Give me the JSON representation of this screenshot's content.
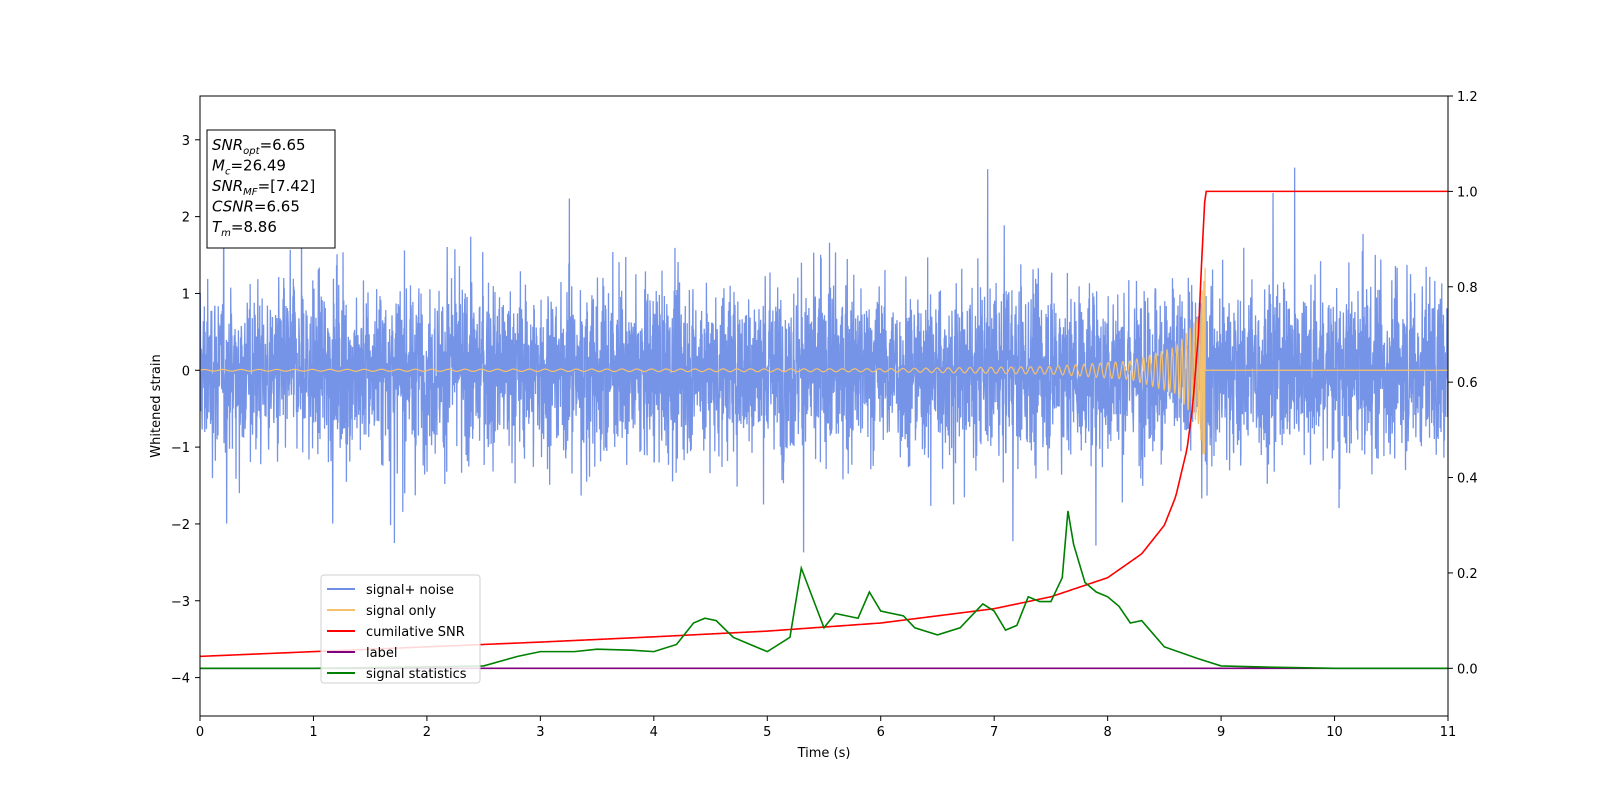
{
  "chart_data": {
    "type": "line",
    "xlabel": "Time (s)",
    "ylabel": "Whitened strain",
    "xlim": [
      0,
      11
    ],
    "ylim": [
      -4.5,
      3.57
    ],
    "y2lim": [
      -0.1,
      1.2
    ],
    "xticks": [
      "0",
      "1",
      "2",
      "3",
      "4",
      "5",
      "6",
      "7",
      "8",
      "9",
      "10",
      "11"
    ],
    "yticks": [
      "−4",
      "−3",
      "−2",
      "−1",
      "0",
      "1",
      "2",
      "3"
    ],
    "y2ticks": [
      "0.0",
      "0.2",
      "0.4",
      "0.6",
      "0.8",
      "1.0",
      "1.2"
    ],
    "grid": false,
    "legend_position": "lower-left",
    "annotation": [
      {
        "label": "SNR",
        "sub": "opt",
        "value": "=6.65"
      },
      {
        "label": "M",
        "sub": "c",
        "value": "=26.49"
      },
      {
        "label": "SNR",
        "sub": "MF",
        "value": "=[7.42]"
      },
      {
        "label": "CSNR",
        "sub": "",
        "value": "=6.65"
      },
      {
        "label": "T",
        "sub": "m",
        "value": "=8.86"
      }
    ],
    "series": [
      {
        "name": "signal+ noise",
        "color": "#6f8ee6",
        "axis": "left",
        "description_range": [
          -2.9,
          3.2
        ]
      },
      {
        "name": "signal only",
        "color": "#f5c16c",
        "axis": "left",
        "merger_time": 8.86,
        "amplitude_points": [
          [
            0,
            0.01
          ],
          [
            6,
            0.02
          ],
          [
            7.5,
            0.05
          ],
          [
            8.2,
            0.12
          ],
          [
            8.6,
            0.3
          ],
          [
            8.8,
            0.7
          ],
          [
            8.86,
            1.35
          ]
        ]
      },
      {
        "name": "cumilative SNR",
        "color": "#ff0000",
        "axis": "right",
        "x": [
          0,
          1,
          2,
          3,
          4,
          5,
          6,
          7,
          7.5,
          8,
          8.3,
          8.5,
          8.6,
          8.7,
          8.75,
          8.8,
          8.83,
          8.86,
          11
        ],
        "y": [
          0.025,
          0.035,
          0.045,
          0.055,
          0.066,
          0.078,
          0.095,
          0.125,
          0.15,
          0.19,
          0.24,
          0.3,
          0.36,
          0.46,
          0.55,
          0.7,
          0.86,
          1.0,
          1.0
        ]
      },
      {
        "name": "label",
        "color": "#800080",
        "axis": "right",
        "x": [
          0,
          11
        ],
        "y": [
          0.0,
          0.0
        ]
      },
      {
        "name": "signal statistics",
        "color": "#008000",
        "axis": "right",
        "x": [
          0,
          1,
          2,
          2.5,
          2.8,
          3.0,
          3.3,
          3.5,
          3.8,
          4.0,
          4.2,
          4.35,
          4.45,
          4.55,
          4.7,
          4.9,
          5.0,
          5.2,
          5.3,
          5.5,
          5.6,
          5.8,
          5.9,
          6.0,
          6.2,
          6.3,
          6.5,
          6.7,
          6.8,
          6.9,
          7.0,
          7.1,
          7.2,
          7.3,
          7.4,
          7.5,
          7.6,
          7.65,
          7.7,
          7.8,
          7.9,
          8.0,
          8.1,
          8.2,
          8.3,
          8.5,
          8.8,
          9.0,
          9.5,
          10.0,
          11.0
        ],
        "y": [
          0.0,
          0.0,
          0.003,
          0.005,
          0.025,
          0.035,
          0.035,
          0.04,
          0.038,
          0.035,
          0.05,
          0.095,
          0.105,
          0.1,
          0.065,
          0.045,
          0.035,
          0.065,
          0.21,
          0.085,
          0.115,
          0.105,
          0.16,
          0.12,
          0.11,
          0.085,
          0.07,
          0.085,
          0.11,
          0.135,
          0.12,
          0.08,
          0.09,
          0.15,
          0.14,
          0.14,
          0.19,
          0.33,
          0.26,
          0.18,
          0.16,
          0.15,
          0.13,
          0.095,
          0.1,
          0.045,
          0.02,
          0.005,
          0.002,
          0.0,
          0.0
        ]
      }
    ]
  }
}
